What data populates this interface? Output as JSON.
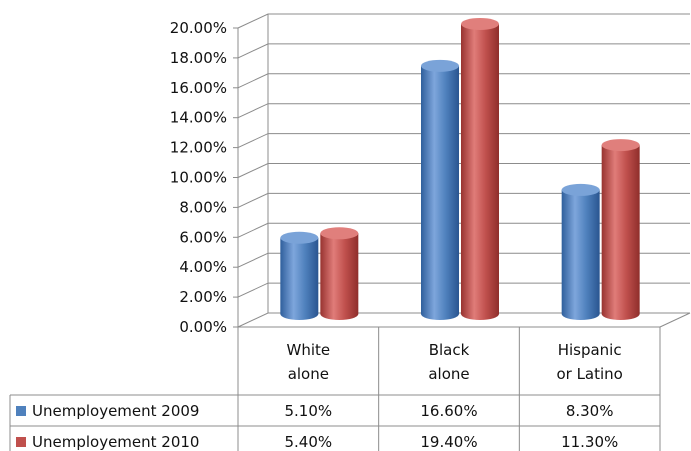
{
  "chart_data": {
    "type": "bar",
    "style": "3d-cylinder",
    "categories": [
      [
        "White",
        "alone"
      ],
      [
        "Black",
        "alone"
      ],
      [
        "Hispanic",
        "or Latino"
      ]
    ],
    "series": [
      {
        "name": "Unemployement 2009",
        "values": [
          5.1,
          16.6,
          8.3
        ],
        "labels": [
          "5.10%",
          "16.60%",
          "8.30%"
        ],
        "color": "#4f81bd"
      },
      {
        "name": "Unemployement 2010",
        "values": [
          5.4,
          19.4,
          11.3
        ],
        "labels": [
          "5.40%",
          "19.40%",
          "11.30%"
        ],
        "color": "#c0504d"
      }
    ],
    "ylim": [
      0,
      20
    ],
    "yticks": [
      "0.00%",
      "2.00%",
      "4.00%",
      "6.00%",
      "8.00%",
      "10.00%",
      "12.00%",
      "14.00%",
      "16.00%",
      "18.00%",
      "20.00%"
    ],
    "grid": true,
    "legend": "data-table-left"
  }
}
